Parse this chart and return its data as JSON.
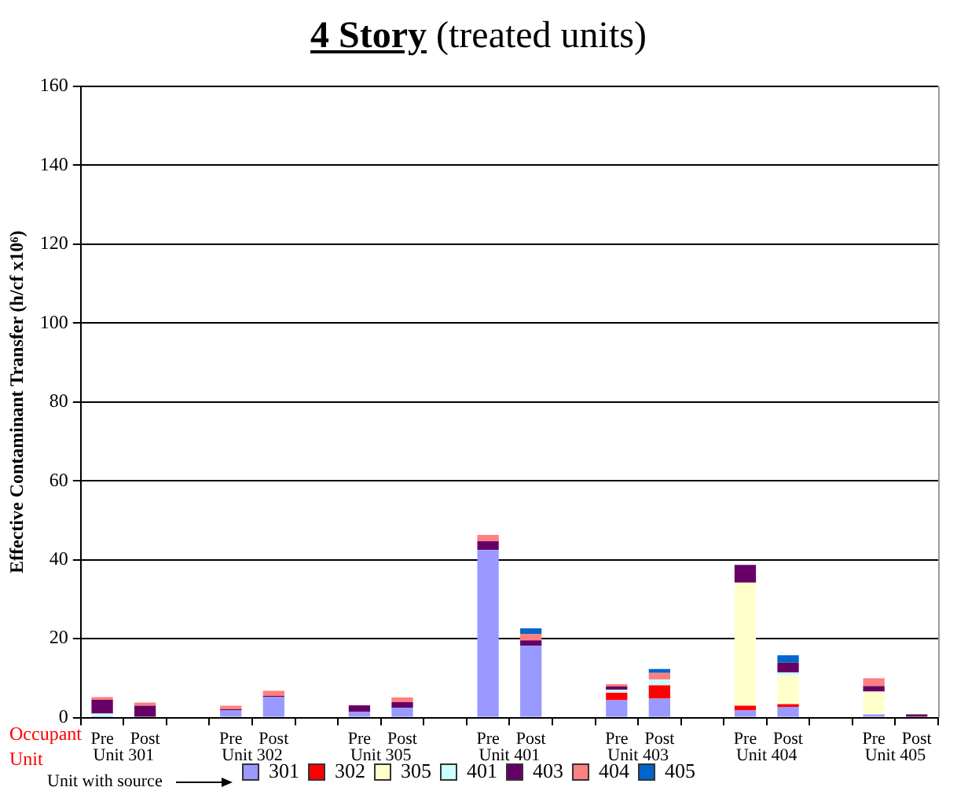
{
  "chart_data": {
    "type": "bar",
    "title": "4 Story (treated units)",
    "ylabel": "Effective Contaminant Transfer (h/cf x10⁶)",
    "categories": [
      "Pre",
      "Post",
      null,
      "Pre",
      "Post",
      null,
      "Pre",
      "Post",
      null,
      "Pre",
      "Post",
      null,
      "Pre",
      "Post",
      null,
      "Pre",
      "Post",
      null,
      "Pre",
      "Post"
    ],
    "stacked": true,
    "ylim": [
      0,
      160
    ],
    "yticks": [
      0,
      20,
      40,
      60,
      80,
      100,
      120,
      140,
      160
    ],
    "grid": "y",
    "legend": "bottom",
    "series": [
      {
        "name": "301",
        "color": "#9999ff",
        "values": [
          0.3,
          null,
          null,
          1.8,
          5.2,
          null,
          1.4,
          2.5,
          null,
          42.5,
          18.2,
          null,
          4.4,
          4.8,
          null,
          1.8,
          2.7,
          null,
          0.8,
          null
        ]
      },
      {
        "name": "302",
        "color": "#ff0000",
        "values": [
          null,
          null,
          null,
          null,
          null,
          null,
          null,
          null,
          null,
          null,
          null,
          null,
          1.9,
          3.4,
          null,
          1.2,
          0.7,
          null,
          null,
          null
        ]
      },
      {
        "name": "305",
        "color": "#ffffcc",
        "values": [
          null,
          null,
          null,
          null,
          null,
          null,
          null,
          null,
          null,
          null,
          null,
          null,
          null,
          null,
          null,
          31.2,
          7.3,
          null,
          5.8,
          null
        ]
      },
      {
        "name": "401",
        "color": "#ccffff",
        "values": [
          0.7,
          null,
          null,
          null,
          null,
          null,
          null,
          null,
          null,
          null,
          null,
          null,
          0.8,
          1.5,
          null,
          null,
          0.7,
          null,
          null,
          null
        ]
      },
      {
        "name": "403",
        "color": "#660066",
        "values": [
          3.5,
          3.0,
          null,
          0.3,
          0.3,
          null,
          1.7,
          1.4,
          null,
          2.2,
          1.4,
          null,
          0.8,
          null,
          null,
          4.5,
          2.5,
          null,
          1.4,
          0.8
        ]
      },
      {
        "name": "404",
        "color": "#ff8080",
        "values": [
          0.7,
          0.8,
          null,
          0.9,
          1.3,
          null,
          null,
          1.2,
          null,
          1.6,
          1.6,
          null,
          0.6,
          1.6,
          null,
          null,
          null,
          null,
          2.0,
          null
        ]
      },
      {
        "name": "405",
        "color": "#0066cc",
        "values": [
          null,
          null,
          null,
          null,
          null,
          null,
          null,
          null,
          null,
          null,
          1.4,
          null,
          null,
          1.0,
          null,
          null,
          1.9,
          null,
          null,
          null
        ]
      }
    ],
    "annotations": [
      "Unit 301",
      "Unit 302",
      "Unit 305",
      "Unit 401",
      "Unit 403",
      "Unit 404",
      "Unit 405",
      "Occupant Unit",
      "Unit with source"
    ]
  }
}
